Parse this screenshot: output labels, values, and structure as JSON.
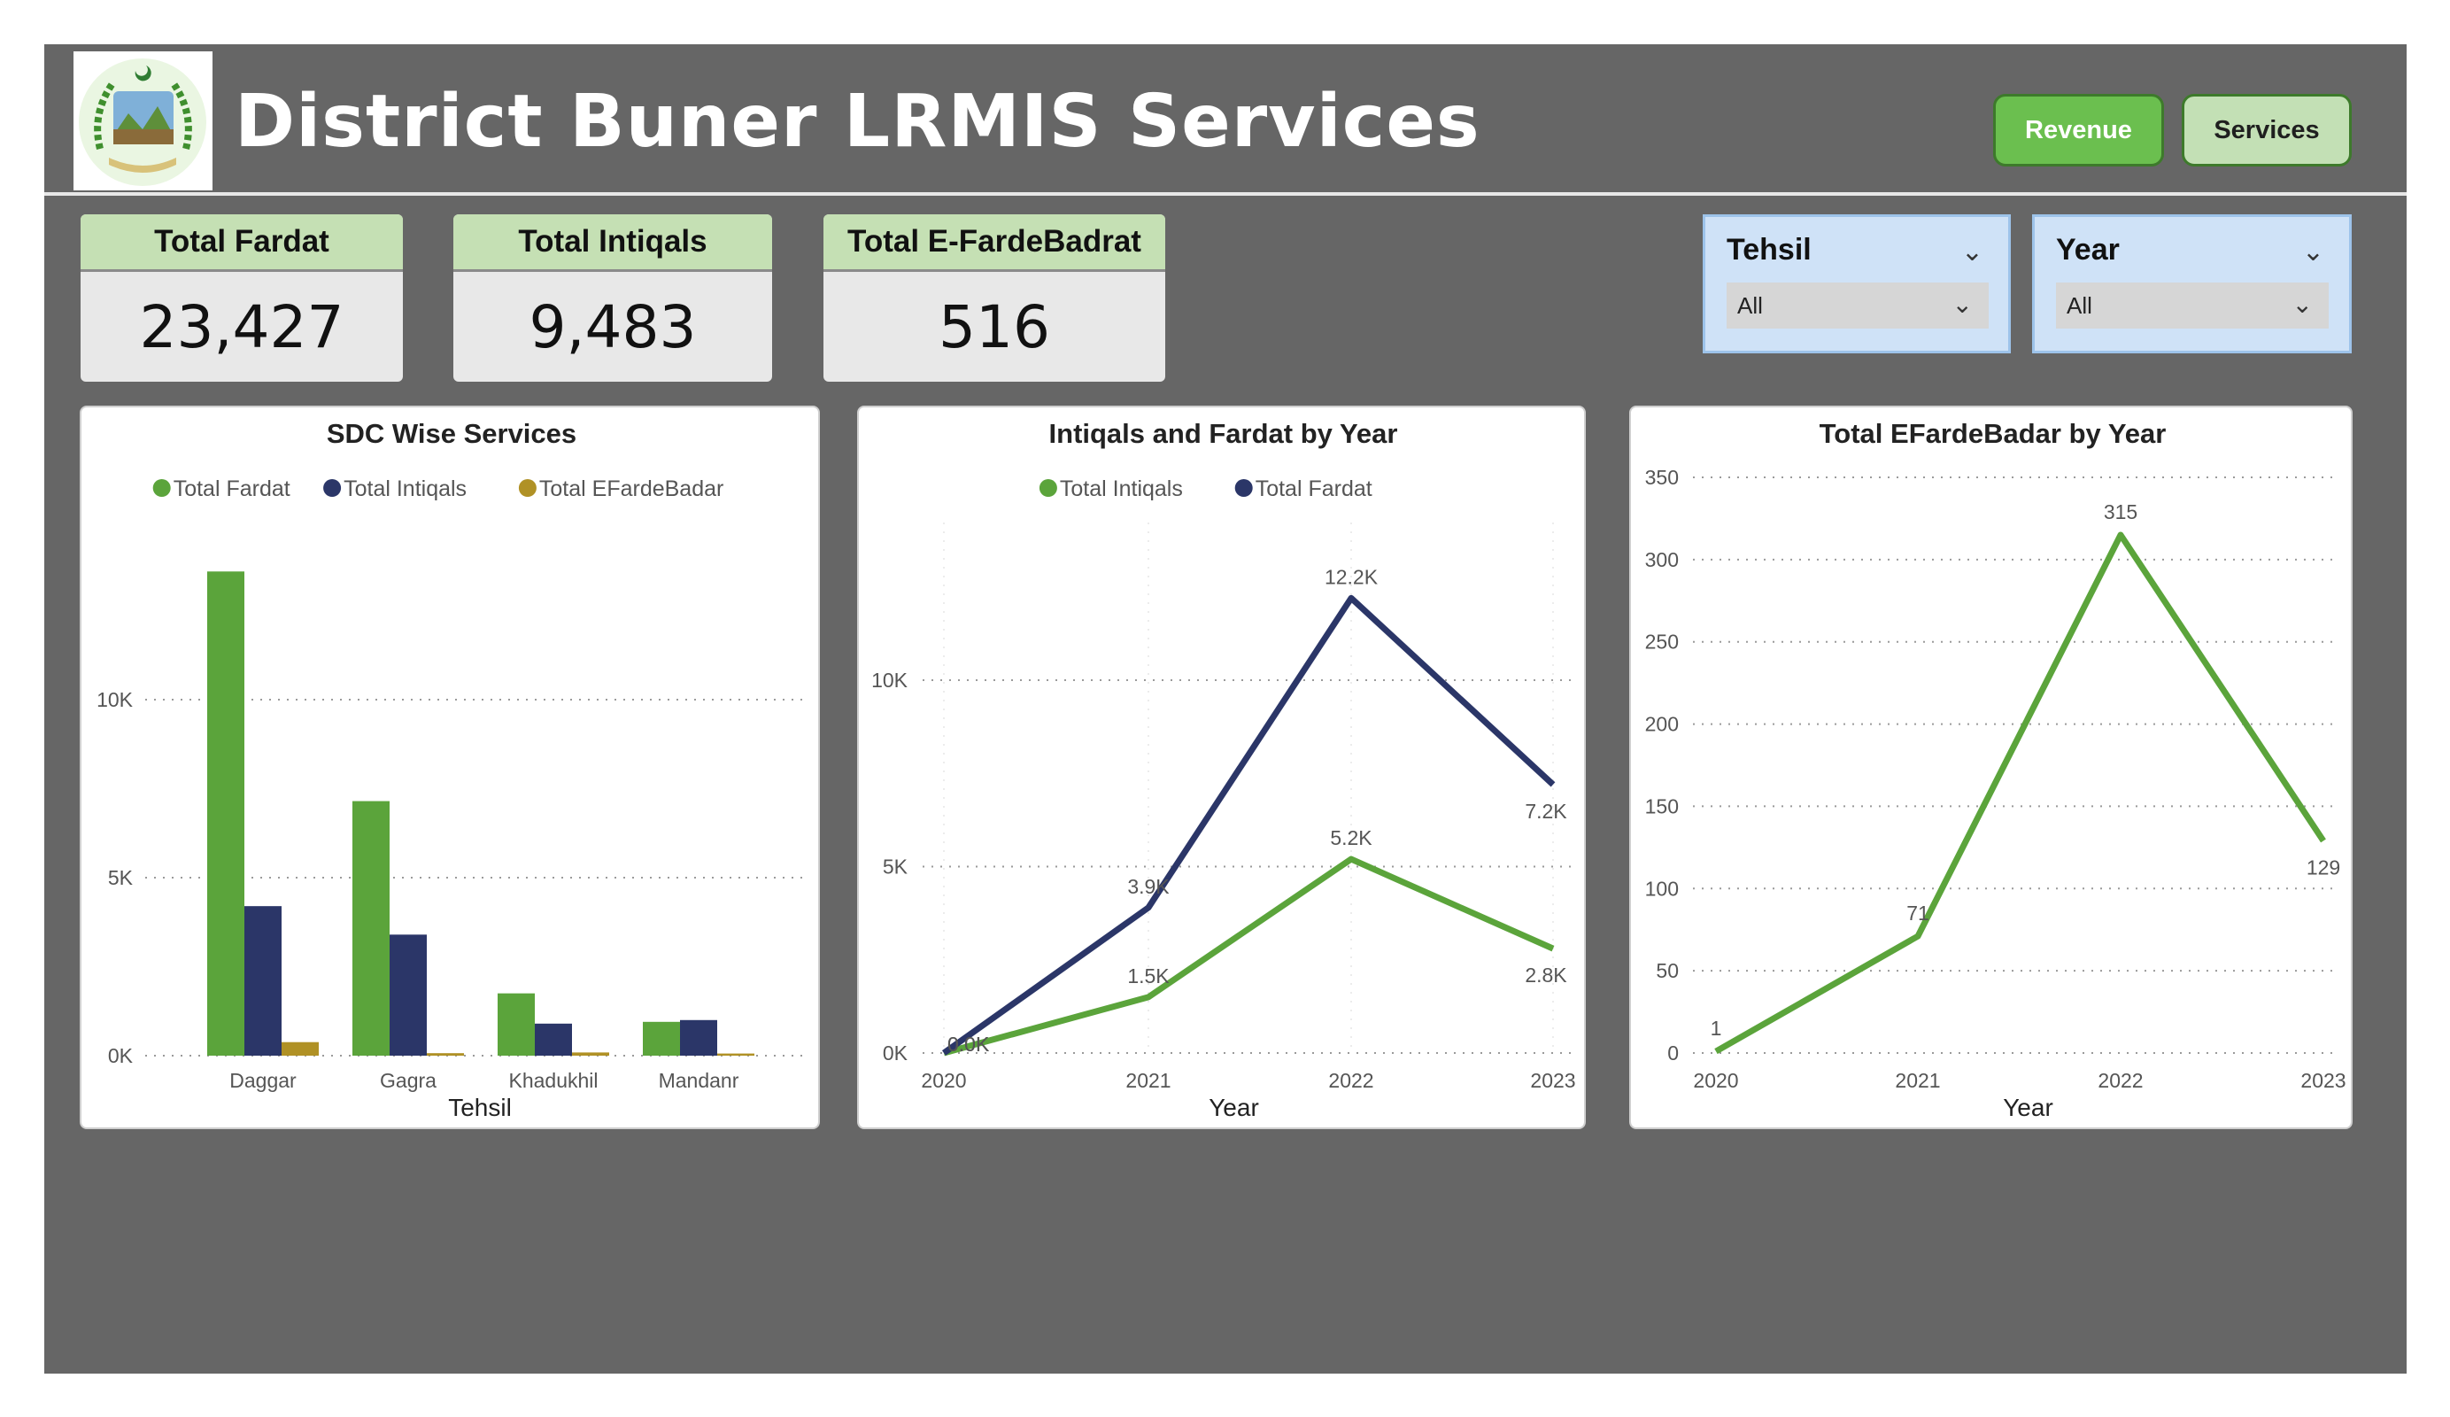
{
  "header": {
    "title": "District Buner LRMIS Services",
    "logo_icon": "district-seal-logo",
    "buttons": [
      {
        "label": "Revenue"
      },
      {
        "label": "Services"
      }
    ]
  },
  "kpis": [
    {
      "label": "Total Fardat",
      "value": "23,427"
    },
    {
      "label": "Total Intiqals",
      "value": "9,483"
    },
    {
      "label": "Total E-FardeBadrat",
      "value": "516"
    }
  ],
  "slicers": [
    {
      "label": "Tehsil",
      "selected": "All"
    },
    {
      "label": "Year",
      "selected": "All"
    }
  ],
  "colors": {
    "green": "#5ba43b",
    "navy": "#2b3668",
    "gold": "#b09125",
    "canvas": "#666666"
  },
  "chart_data": [
    {
      "type": "bar",
      "title": "SDC Wise Services",
      "xlabel": "Tehsil",
      "ylabel": "",
      "categories": [
        "Daggar",
        "Gagra",
        "Khadukhil",
        "Mandanr"
      ],
      "series": [
        {
          "name": "Total Fardat",
          "color": "#5ba43b",
          "values": [
            13600,
            7150,
            1750,
            950
          ]
        },
        {
          "name": "Total Intiqals",
          "color": "#2b3668",
          "values": [
            4200,
            3400,
            900,
            1000
          ]
        },
        {
          "name": "Total EFardeBadar",
          "color": "#b09125",
          "values": [
            380,
            70,
            90,
            60
          ]
        }
      ],
      "yticks": [
        {
          "v": 0,
          "label": "0K"
        },
        {
          "v": 5000,
          "label": "5K"
        },
        {
          "v": 10000,
          "label": "10K"
        }
      ],
      "ylim": [
        0,
        15000
      ],
      "grid": true,
      "legend": "top"
    },
    {
      "type": "line",
      "title": "Intiqals and Fardat by Year",
      "xlabel": "Year",
      "ylabel": "",
      "x": [
        "2020",
        "2021",
        "2022",
        "2023"
      ],
      "series": [
        {
          "name": "Total Intiqals",
          "color": "#5ba43b",
          "values": [
            0,
            1500,
            5200,
            2800
          ],
          "labels": [
            "0.0K",
            "1.5K",
            "5.2K",
            "2.8K"
          ]
        },
        {
          "name": "Total Fardat",
          "color": "#2b3668",
          "values": [
            0,
            3900,
            12200,
            7200
          ],
          "labels": [
            "0.0K",
            "3.9K",
            "12.2K",
            "7.2K"
          ]
        }
      ],
      "yticks": [
        {
          "v": 0,
          "label": "0K"
        },
        {
          "v": 5000,
          "label": "5K"
        },
        {
          "v": 10000,
          "label": "10K"
        }
      ],
      "ylim": [
        0,
        14000
      ],
      "grid": true,
      "legend": "top"
    },
    {
      "type": "line",
      "title": "Total EFardeBadar by Year",
      "xlabel": "Year",
      "ylabel": "",
      "x": [
        "2020",
        "2021",
        "2022",
        "2023"
      ],
      "series": [
        {
          "name": "Total EFardeBadar",
          "color": "#5ba43b",
          "values": [
            1,
            71,
            315,
            129
          ],
          "labels": [
            "1",
            "71",
            "315",
            "129"
          ]
        }
      ],
      "yticks": [
        {
          "v": 0,
          "label": "0"
        },
        {
          "v": 50,
          "label": "50"
        },
        {
          "v": 100,
          "label": "100"
        },
        {
          "v": 150,
          "label": "150"
        },
        {
          "v": 200,
          "label": "200"
        },
        {
          "v": 250,
          "label": "250"
        },
        {
          "v": 300,
          "label": "300"
        },
        {
          "v": 350,
          "label": "350"
        }
      ],
      "ylim": [
        0,
        350
      ],
      "grid": true,
      "legend": "none"
    }
  ]
}
